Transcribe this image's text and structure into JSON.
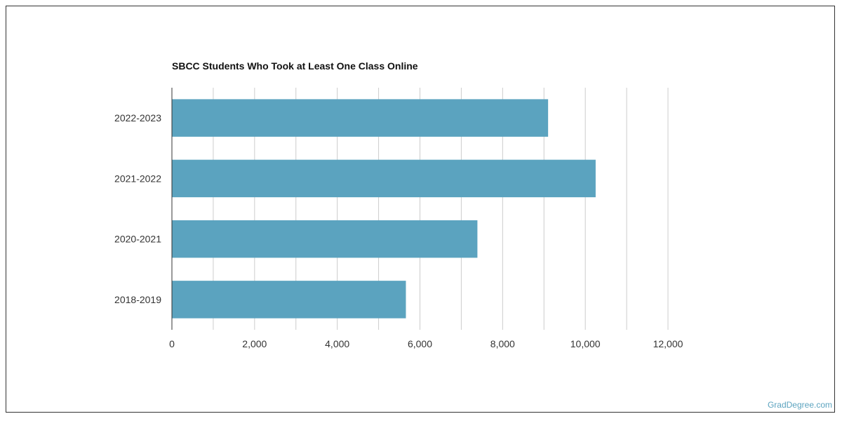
{
  "chart_data": {
    "type": "bar",
    "orientation": "horizontal",
    "title": "SBCC Students Who Took at Least One Class Online",
    "categories": [
      "2022-2023",
      "2021-2022",
      "2020-2021",
      "2018-2019"
    ],
    "values": [
      9100,
      10250,
      7390,
      5660
    ],
    "xlim": [
      0,
      12000
    ],
    "x_ticks": [
      0,
      2000,
      4000,
      6000,
      8000,
      10000,
      12000
    ],
    "x_tick_labels": [
      "0",
      "2,000",
      "4,000",
      "6,000",
      "8,000",
      "10,000",
      "12,000"
    ],
    "grid": true,
    "bar_color": "#5ba3bf",
    "grid_color": "#cccccc"
  },
  "watermark": "GradDegree.com"
}
